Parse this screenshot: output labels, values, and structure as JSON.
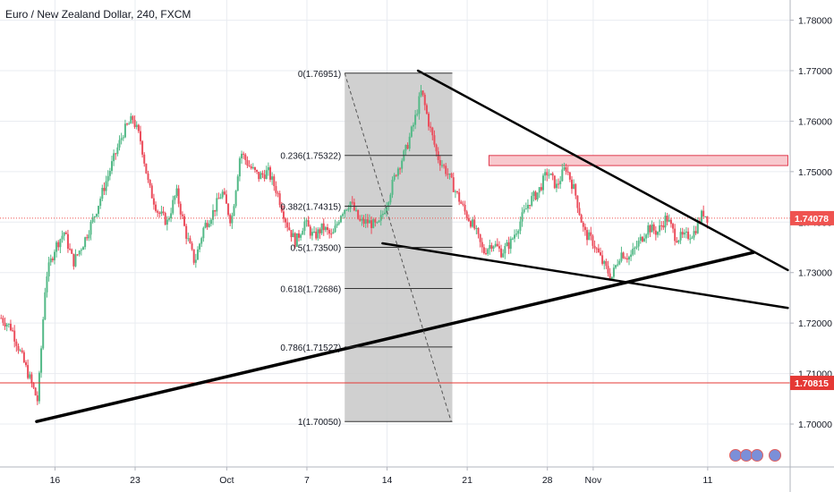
{
  "header": {
    "title": "Euro / New Zealand Dollar, 240, FXCM"
  },
  "colors": {
    "up": "#53b987",
    "down": "#eb4d5c",
    "grid": "#e9ecf1",
    "axis": "#b2b5be",
    "fib_zone": "#c8c8c8",
    "resistance_fill": "#f8c9ce",
    "resistance_stroke": "#e03a4e",
    "support_line": "#e53935",
    "current_tag": "#ef5350",
    "trend": "#000000"
  },
  "chart_data": {
    "type": "candlestick",
    "title": "Euro / New Zealand Dollar, 240, FXCM",
    "x_ticks": [
      {
        "label": "16",
        "day": 16
      },
      {
        "label": "23",
        "day": 23
      },
      {
        "label": "Oct",
        "day": 31
      },
      {
        "label": "7",
        "day": 38
      },
      {
        "label": "14",
        "day": 45
      },
      {
        "label": "21",
        "day": 52
      },
      {
        "label": "28",
        "day": 59
      },
      {
        "label": "Nov",
        "day": 63
      },
      {
        "label": "11",
        "day": 73
      }
    ],
    "y_ticks": [
      "1.78000",
      "1.77000",
      "1.76000",
      "1.75000",
      "1.74000",
      "1.73000",
      "1.72000",
      "1.71000",
      "1.70000"
    ],
    "ylim": [
      1.6915,
      1.784
    ],
    "xlim": [
      11.2,
      80.2
    ],
    "anchor_path": [
      [
        11.3,
        1.721
      ],
      [
        12.2,
        1.719
      ],
      [
        13.0,
        1.714
      ],
      [
        13.8,
        1.709
      ],
      [
        14.5,
        1.7045
      ],
      [
        15.2,
        1.729
      ],
      [
        16.0,
        1.735
      ],
      [
        16.8,
        1.738
      ],
      [
        17.6,
        1.732
      ],
      [
        18.5,
        1.736
      ],
      [
        19.4,
        1.741
      ],
      [
        20.3,
        1.747
      ],
      [
        21.2,
        1.753
      ],
      [
        22.0,
        1.758
      ],
      [
        22.8,
        1.7605
      ],
      [
        23.5,
        1.756
      ],
      [
        24.2,
        1.747
      ],
      [
        25.0,
        1.742
      ],
      [
        25.8,
        1.74
      ],
      [
        26.6,
        1.746
      ],
      [
        27.4,
        1.738
      ],
      [
        28.2,
        1.732
      ],
      [
        29.0,
        1.739
      ],
      [
        29.8,
        1.742
      ],
      [
        30.6,
        1.746
      ],
      [
        31.4,
        1.74
      ],
      [
        32.2,
        1.754
      ],
      [
        33.0,
        1.751
      ],
      [
        33.8,
        1.749
      ],
      [
        34.6,
        1.75
      ],
      [
        35.4,
        1.746
      ],
      [
        36.2,
        1.74
      ],
      [
        37.0,
        1.736
      ],
      [
        37.8,
        1.74
      ],
      [
        38.6,
        1.737
      ],
      [
        39.4,
        1.739
      ],
      [
        40.2,
        1.737
      ],
      [
        41.0,
        1.742
      ],
      [
        41.8,
        1.744
      ],
      [
        42.6,
        1.74
      ],
      [
        43.4,
        1.74
      ],
      [
        44.2,
        1.739
      ],
      [
        45.0,
        1.744
      ],
      [
        45.8,
        1.75
      ],
      [
        46.6,
        1.754
      ],
      [
        47.4,
        1.76
      ],
      [
        48.0,
        1.766
      ],
      [
        48.6,
        1.76
      ],
      [
        49.4,
        1.753
      ],
      [
        50.2,
        1.75
      ],
      [
        51.0,
        1.746
      ],
      [
        51.8,
        1.742
      ],
      [
        52.6,
        1.739
      ],
      [
        53.4,
        1.734
      ],
      [
        54.2,
        1.736
      ],
      [
        55.0,
        1.734
      ],
      [
        55.8,
        1.736
      ],
      [
        56.6,
        1.74
      ],
      [
        57.4,
        1.744
      ],
      [
        58.2,
        1.746
      ],
      [
        59.0,
        1.75
      ],
      [
        59.8,
        1.747
      ],
      [
        60.6,
        1.751
      ],
      [
        61.4,
        1.746
      ],
      [
        62.2,
        1.738
      ],
      [
        63.0,
        1.736
      ],
      [
        63.8,
        1.732
      ],
      [
        64.6,
        1.729
      ],
      [
        65.4,
        1.734
      ],
      [
        66.2,
        1.733
      ],
      [
        67.0,
        1.736
      ],
      [
        67.8,
        1.739
      ],
      [
        68.6,
        1.738
      ],
      [
        69.4,
        1.741
      ],
      [
        70.2,
        1.737
      ],
      [
        71.0,
        1.737
      ],
      [
        71.8,
        1.738
      ],
      [
        72.6,
        1.742
      ],
      [
        73.0,
        1.7408
      ]
    ],
    "current_price": {
      "value": 1.74078,
      "label": "1.74078"
    },
    "support_level": {
      "value": 1.70815,
      "label": "1.70815"
    },
    "fibonacci": {
      "x_start": 41.3,
      "x_end": 50.7,
      "levels": [
        {
          "ratio": 0,
          "price": 1.76951,
          "label": "0(1.76951)"
        },
        {
          "ratio": 0.236,
          "price": 1.75322,
          "label": "0.236(1.75322)"
        },
        {
          "ratio": 0.382,
          "price": 1.74315,
          "label": "0.382(1.74315)"
        },
        {
          "ratio": 0.5,
          "price": 1.735,
          "label": "0.5(1.73500)"
        },
        {
          "ratio": 0.618,
          "price": 1.72686,
          "label": "0.618(1.72686)"
        },
        {
          "ratio": 0.786,
          "price": 1.71527,
          "label": "0.786(1.71527)"
        },
        {
          "ratio": 1,
          "price": 1.7005,
          "label": "1(1.70050)"
        }
      ]
    },
    "resistance_zone": {
      "x_start": 53.9,
      "x_end": 80.0,
      "y_low": 1.7512,
      "y_high": 1.7532
    },
    "trendlines": [
      {
        "from": [
          47.7,
          1.77
        ],
        "to": [
          80.0,
          1.7305
        ],
        "width": 2.5
      },
      {
        "from": [
          14.4,
          1.7005
        ],
        "to": [
          77.0,
          1.734
        ],
        "width": 3.5
      },
      {
        "from": [
          44.6,
          1.7358
        ],
        "to": [
          80.0,
          1.723
        ],
        "width": 2.5
      }
    ],
    "fib_diagonal": {
      "from": [
        41.3,
        1.76951
      ],
      "to": [
        50.6,
        1.7005
      ]
    }
  }
}
